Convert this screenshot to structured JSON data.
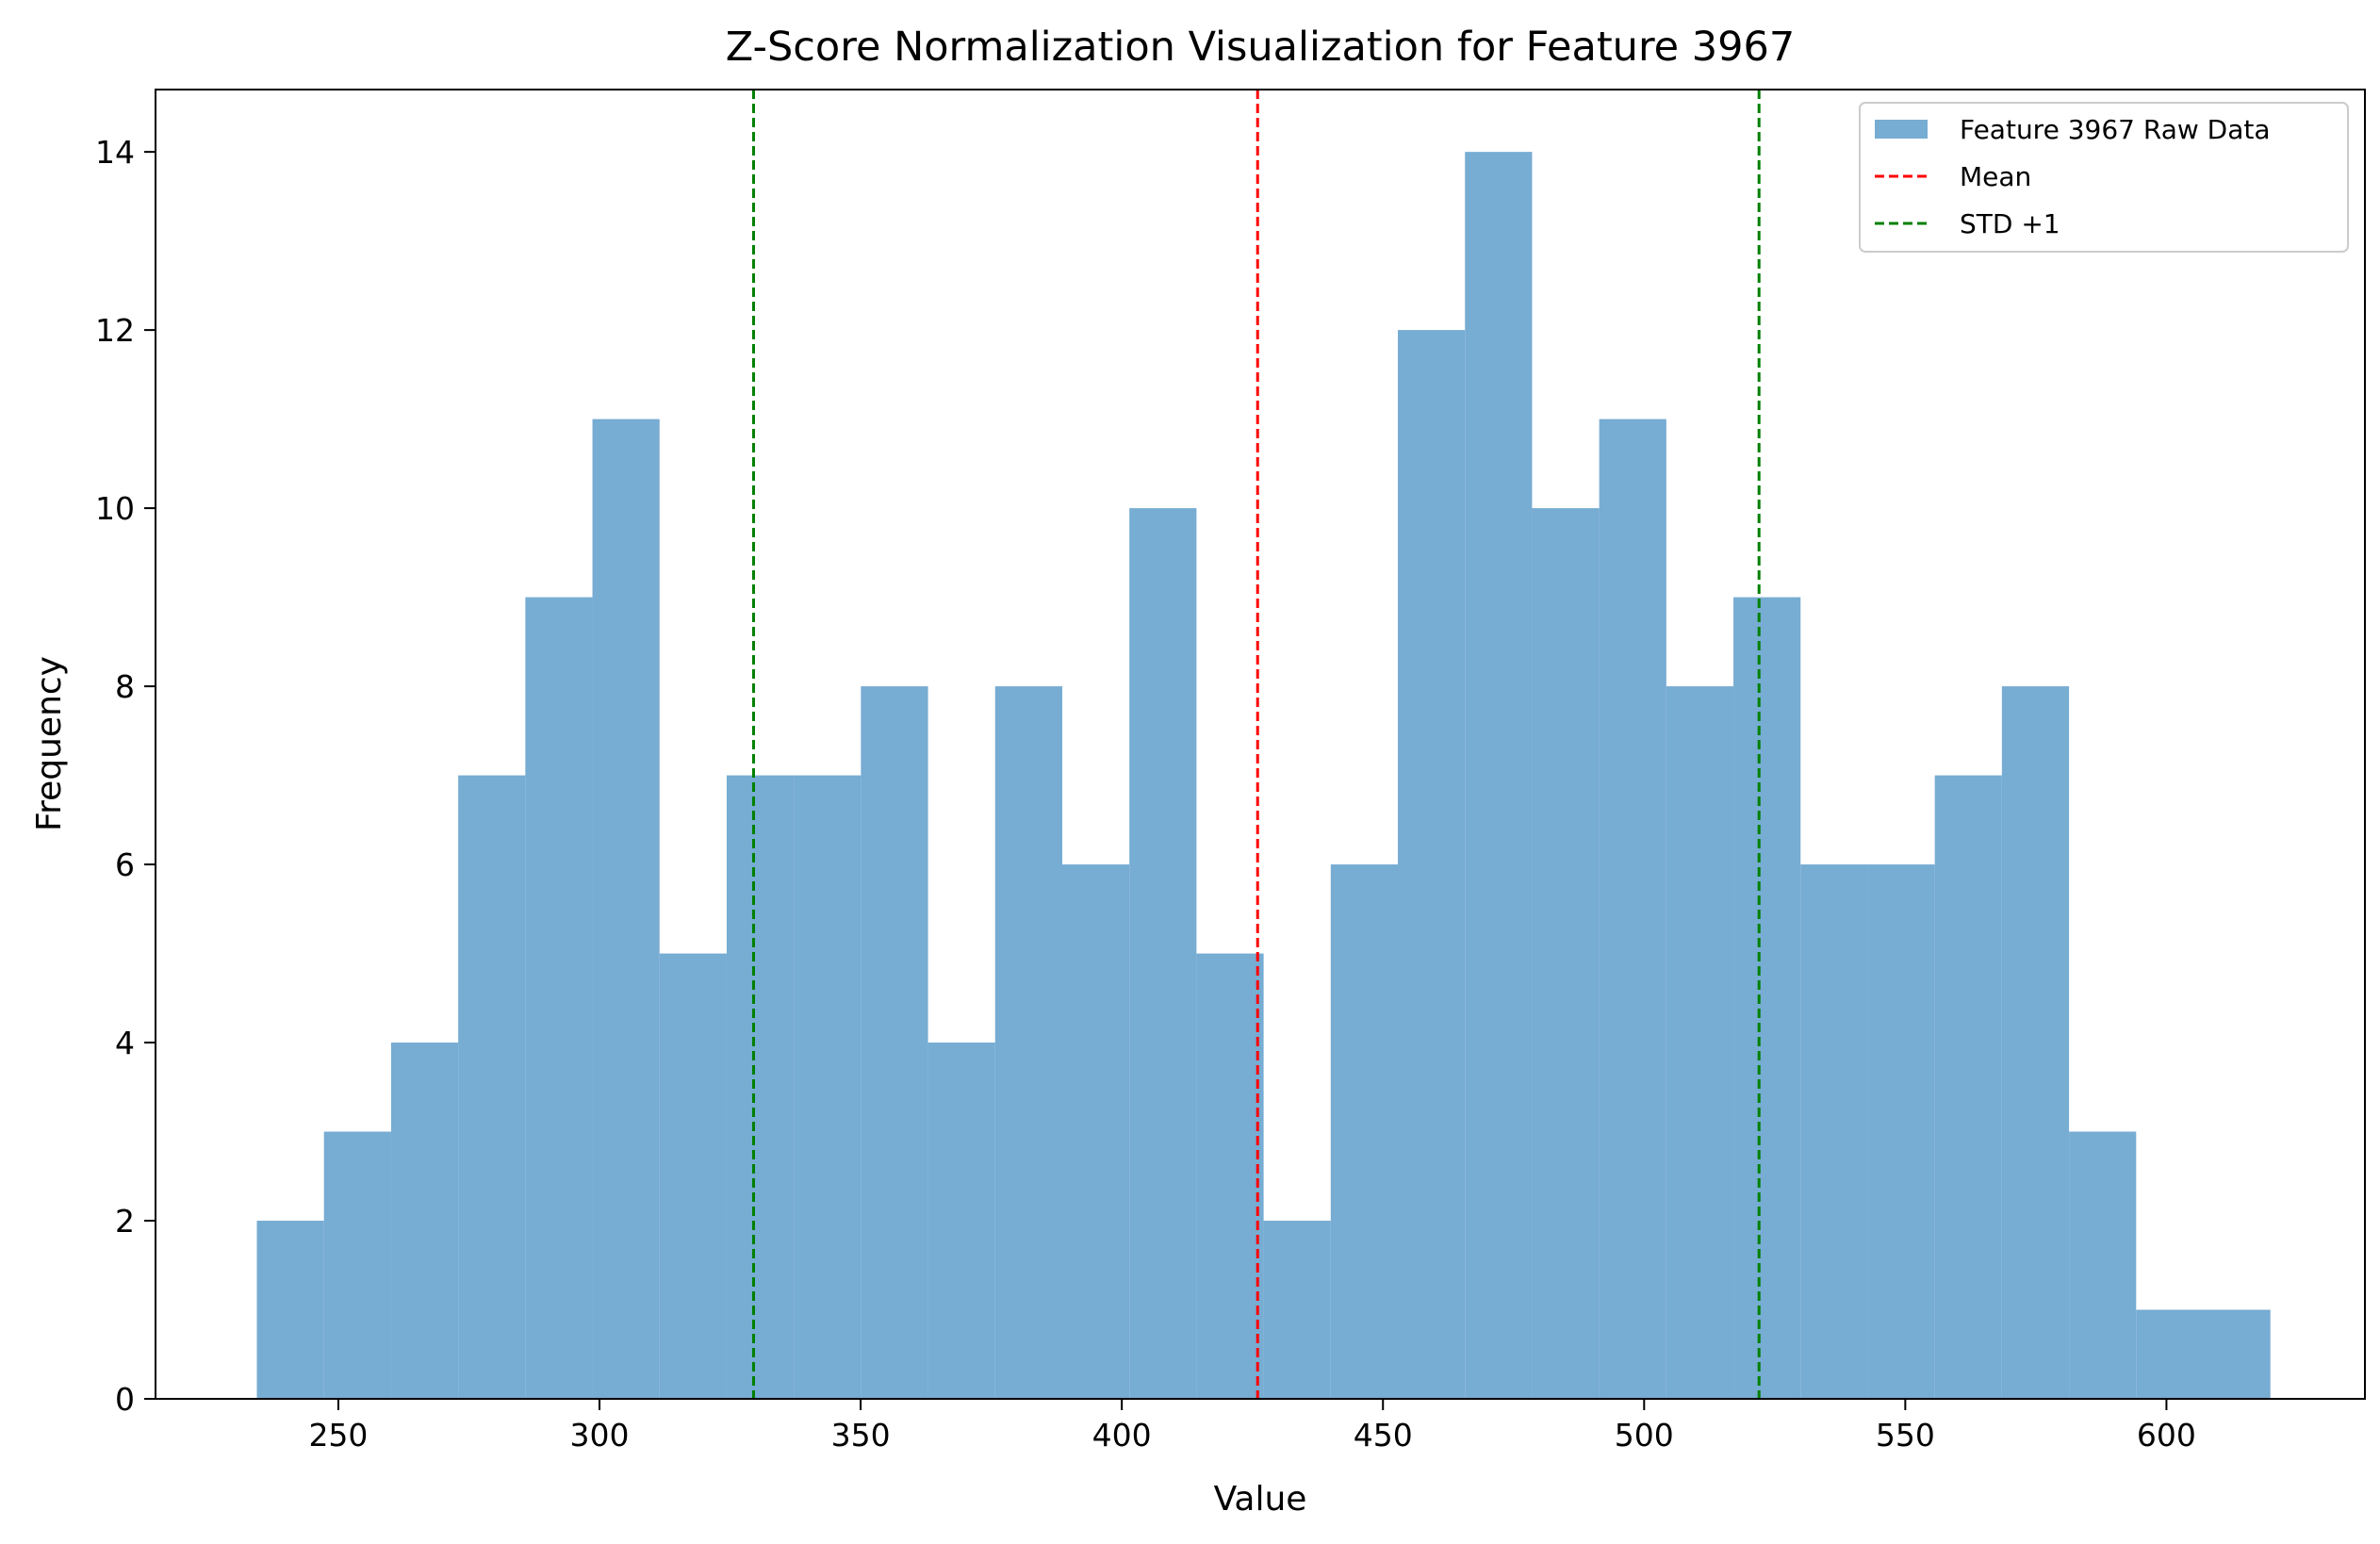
{
  "chart_data": {
    "type": "bar",
    "title": "Z-Score Normalization Visualization for Feature 3967",
    "xlabel": "Value",
    "ylabel": "Frequency",
    "xlim": [
      215,
      638
    ],
    "ylim": [
      0,
      14.7
    ],
    "x_ticks": [
      250,
      300,
      350,
      400,
      450,
      500,
      550,
      600
    ],
    "y_ticks": [
      0,
      2,
      4,
      6,
      8,
      10,
      12,
      14
    ],
    "bin_start": 234.4,
    "bin_width": 12.85,
    "values": [
      2,
      3,
      4,
      7,
      9,
      11,
      5,
      7,
      7,
      8,
      4,
      8,
      6,
      10,
      5,
      2,
      6,
      12,
      14,
      10,
      11,
      8,
      9,
      6,
      6,
      7,
      8,
      3,
      1,
      1
    ],
    "series": [
      {
        "name": "Feature 3967 Raw Data",
        "color": "#77acd3",
        "kind": "histogram"
      },
      {
        "name": "Mean",
        "color": "#ff0000",
        "kind": "vline",
        "x": 426
      },
      {
        "name": "STD +1",
        "color": "#008000",
        "kind": "vline",
        "x_values": [
          329.5,
          522
        ]
      }
    ],
    "legend_position": "top-right",
    "grid": false
  }
}
